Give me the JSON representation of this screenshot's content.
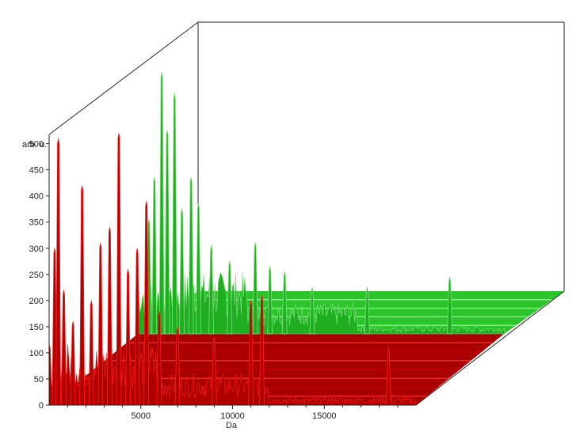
{
  "chart_data": {
    "type": "area",
    "title": "",
    "xlabel": "Da",
    "ylabel": "arb. u.",
    "xlim": [
      0,
      20000
    ],
    "ylim": [
      0,
      510
    ],
    "x_ticks": [
      5000,
      10000,
      15000
    ],
    "x_tick_labels": [
      "5000",
      "10000",
      "15000"
    ],
    "y_ticks": [
      0,
      50,
      100,
      150,
      200,
      250,
      300,
      350,
      400,
      450,
      500
    ],
    "y_tick_labels": [
      "0",
      "50",
      "100",
      "150",
      "200",
      "250",
      "300",
      "350",
      "400",
      "450",
      "500"
    ],
    "grid": false,
    "legend": "none",
    "depth_layers": 2,
    "series": [
      {
        "group": "red",
        "color": "#b00000",
        "color_light": "#ff1a1a",
        "depth": 0,
        "peaks": [
          {
            "x": 300,
            "y": 300
          },
          {
            "x": 500,
            "y": 510
          },
          {
            "x": 800,
            "y": 220
          },
          {
            "x": 1300,
            "y": 160
          },
          {
            "x": 1800,
            "y": 420
          },
          {
            "x": 2300,
            "y": 200
          },
          {
            "x": 2800,
            "y": 310
          },
          {
            "x": 3300,
            "y": 340
          },
          {
            "x": 3800,
            "y": 520
          },
          {
            "x": 4300,
            "y": 260
          },
          {
            "x": 4800,
            "y": 300
          },
          {
            "x": 5300,
            "y": 390
          },
          {
            "x": 6000,
            "y": 180
          },
          {
            "x": 7000,
            "y": 150
          },
          {
            "x": 9000,
            "y": 130
          },
          {
            "x": 11000,
            "y": 200
          },
          {
            "x": 11600,
            "y": 210
          },
          {
            "x": 18500,
            "y": 110
          }
        ]
      },
      {
        "group": "green",
        "color": "#1fae1f",
        "color_light": "#7fe07f",
        "depth": 1,
        "peaks": [
          {
            "x": 600,
            "y": 220
          },
          {
            "x": 900,
            "y": 300
          },
          {
            "x": 1300,
            "y": 500
          },
          {
            "x": 1600,
            "y": 390
          },
          {
            "x": 2000,
            "y": 460
          },
          {
            "x": 2400,
            "y": 240
          },
          {
            "x": 2900,
            "y": 300
          },
          {
            "x": 3300,
            "y": 250
          },
          {
            "x": 4000,
            "y": 170
          },
          {
            "x": 5000,
            "y": 140
          },
          {
            "x": 6400,
            "y": 175
          },
          {
            "x": 7200,
            "y": 130
          },
          {
            "x": 8000,
            "y": 120
          },
          {
            "x": 9500,
            "y": 90
          },
          {
            "x": 12500,
            "y": 90
          },
          {
            "x": 17000,
            "y": 110
          }
        ]
      }
    ]
  }
}
